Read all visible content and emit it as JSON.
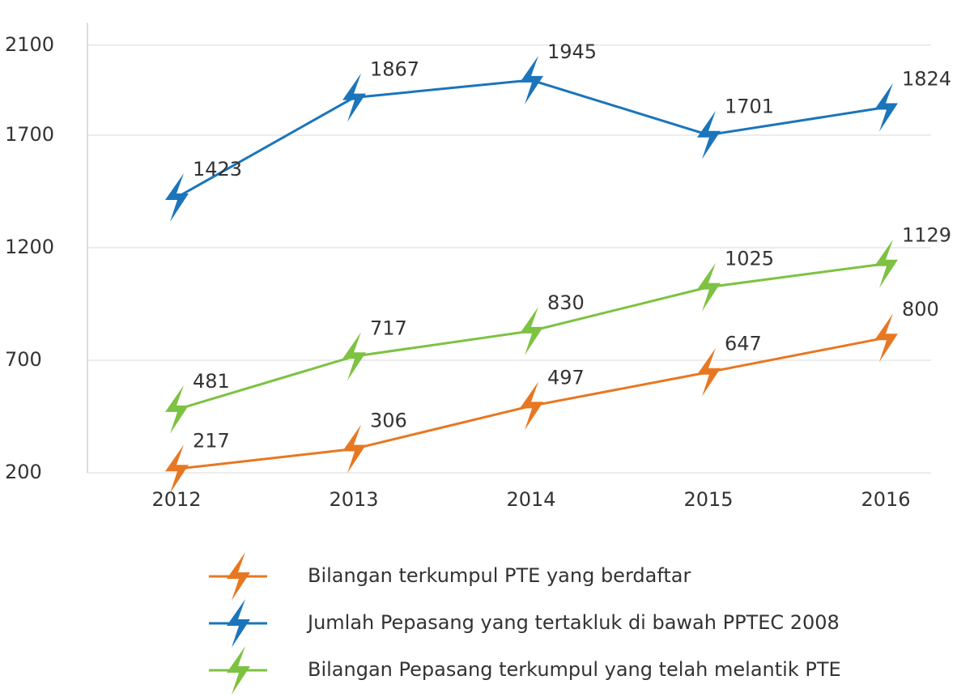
{
  "chart_data": {
    "type": "line",
    "categories": [
      "2012",
      "2013",
      "2014",
      "2015",
      "2016"
    ],
    "series": [
      {
        "name": "Bilangan terkumpul PTE yang berdaftar",
        "color": "#e87722",
        "values": [
          217,
          306,
          497,
          647,
          800
        ]
      },
      {
        "name": "Jumlah Pepasang yang tertakluk di bawah PPTEC 2008",
        "color": "#1a75bb",
        "values": [
          1423,
          1867,
          1945,
          1701,
          1824
        ]
      },
      {
        "name": "Bilangan Pepasang terkumpul yang telah melantik PTE",
        "color": "#7dc242",
        "values": [
          481,
          717,
          830,
          1025,
          1129
        ]
      }
    ],
    "ylim": [
      200,
      2200
    ],
    "yticks": [
      200,
      700,
      1200,
      1700,
      2100
    ],
    "grid": true,
    "legend": "bottom"
  }
}
